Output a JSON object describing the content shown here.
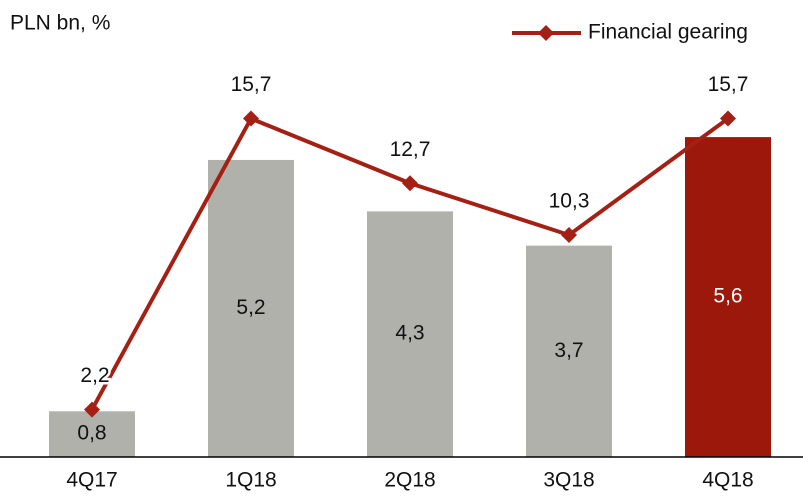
{
  "chart_data": {
    "type": "bar",
    "title": "PLN bn, %",
    "categories": [
      "4Q17",
      "1Q18",
      "2Q18",
      "3Q18",
      "4Q18"
    ],
    "series": [
      {
        "type": "bar",
        "colors": [
          "#b1b1ab",
          "#b1b1ab",
          "#b1b1ab",
          "#b1b1ab",
          "#9c180b"
        ],
        "values": [
          0.8,
          5.2,
          4.3,
          3.7,
          5.6
        ],
        "value_labels": [
          "0,8",
          "5,2",
          "4,3",
          "3,7",
          "5,6"
        ]
      },
      {
        "type": "line",
        "name": "Financial gearing",
        "axis": "y2",
        "color": "#a52014",
        "values": [
          2.2,
          15.7,
          12.7,
          10.3,
          15.7
        ],
        "value_labels": [
          "2,2",
          "15,7",
          "12,7",
          "10,3",
          "15,7"
        ]
      }
    ],
    "ylim": [
      0,
      8
    ],
    "y2lim": [
      0,
      21.2
    ],
    "legend": "top-right"
  }
}
